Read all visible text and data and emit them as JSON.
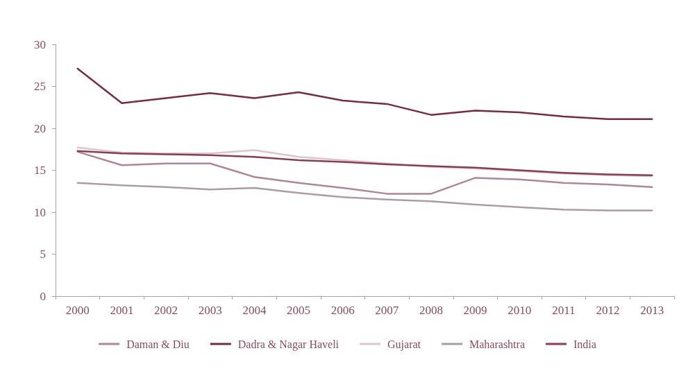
{
  "chart_data": {
    "type": "line",
    "categories": [
      "2000",
      "2001",
      "2002",
      "2003",
      "2004",
      "2005",
      "2006",
      "2007",
      "2008",
      "2009",
      "2010",
      "2011",
      "2012",
      "2013"
    ],
    "series": [
      {
        "name": "Daman & Diu",
        "color": "#b08597",
        "values": [
          17.2,
          15.6,
          15.8,
          15.8,
          14.2,
          13.5,
          12.9,
          12.2,
          12.2,
          14.1,
          13.9,
          13.5,
          13.3,
          13.0
        ]
      },
      {
        "name": "Dadra & Nagar Haveli",
        "color": "#7a2843",
        "values": [
          27.1,
          23.0,
          23.6,
          24.2,
          23.6,
          24.3,
          23.3,
          22.9,
          21.6,
          22.1,
          21.9,
          21.4,
          21.1,
          21.1
        ]
      },
      {
        "name": "Gujarat",
        "color": "#dcc5cd",
        "values": [
          17.7,
          17.1,
          17.0,
          17.0,
          17.4,
          16.6,
          16.2,
          15.8,
          15.4,
          15.2,
          14.9,
          14.6,
          14.4,
          14.3
        ]
      },
      {
        "name": "Maharashtra",
        "color": "#ab9ca3",
        "values": [
          13.5,
          13.2,
          13.0,
          12.7,
          12.9,
          12.3,
          11.8,
          11.5,
          11.3,
          10.9,
          10.6,
          10.3,
          10.2,
          10.2
        ]
      },
      {
        "name": "India",
        "color": "#8c3b57",
        "values": [
          17.3,
          17.0,
          16.9,
          16.8,
          16.6,
          16.2,
          16.0,
          15.7,
          15.5,
          15.3,
          15.0,
          14.7,
          14.5,
          14.4
        ]
      }
    ],
    "ylim": [
      0,
      30
    ],
    "yticks": [
      0,
      5,
      10,
      15,
      20,
      25,
      30
    ],
    "grid": false,
    "legend": "bottom",
    "marker": "none",
    "line_style": "solid"
  }
}
